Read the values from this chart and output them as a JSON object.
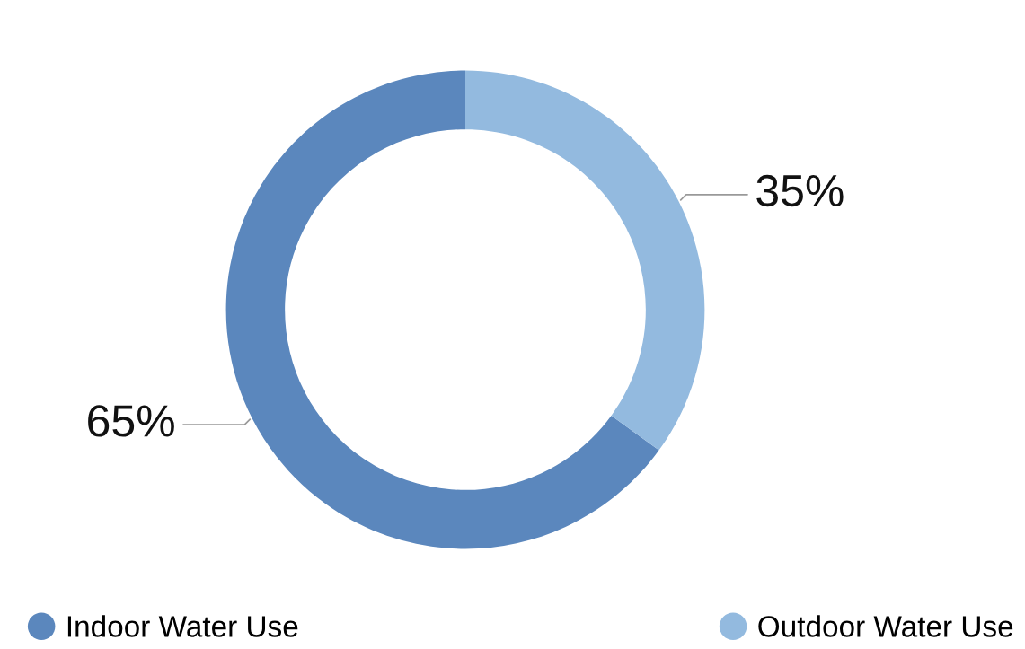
{
  "chart_data": {
    "type": "donut",
    "categories": [
      "Indoor Water Use",
      "Outdoor Water Use"
    ],
    "values": [
      65,
      35
    ],
    "colors": [
      "#5b87bd",
      "#93badf"
    ],
    "value_labels": [
      "65%",
      "35%"
    ],
    "legend": "bottom"
  }
}
